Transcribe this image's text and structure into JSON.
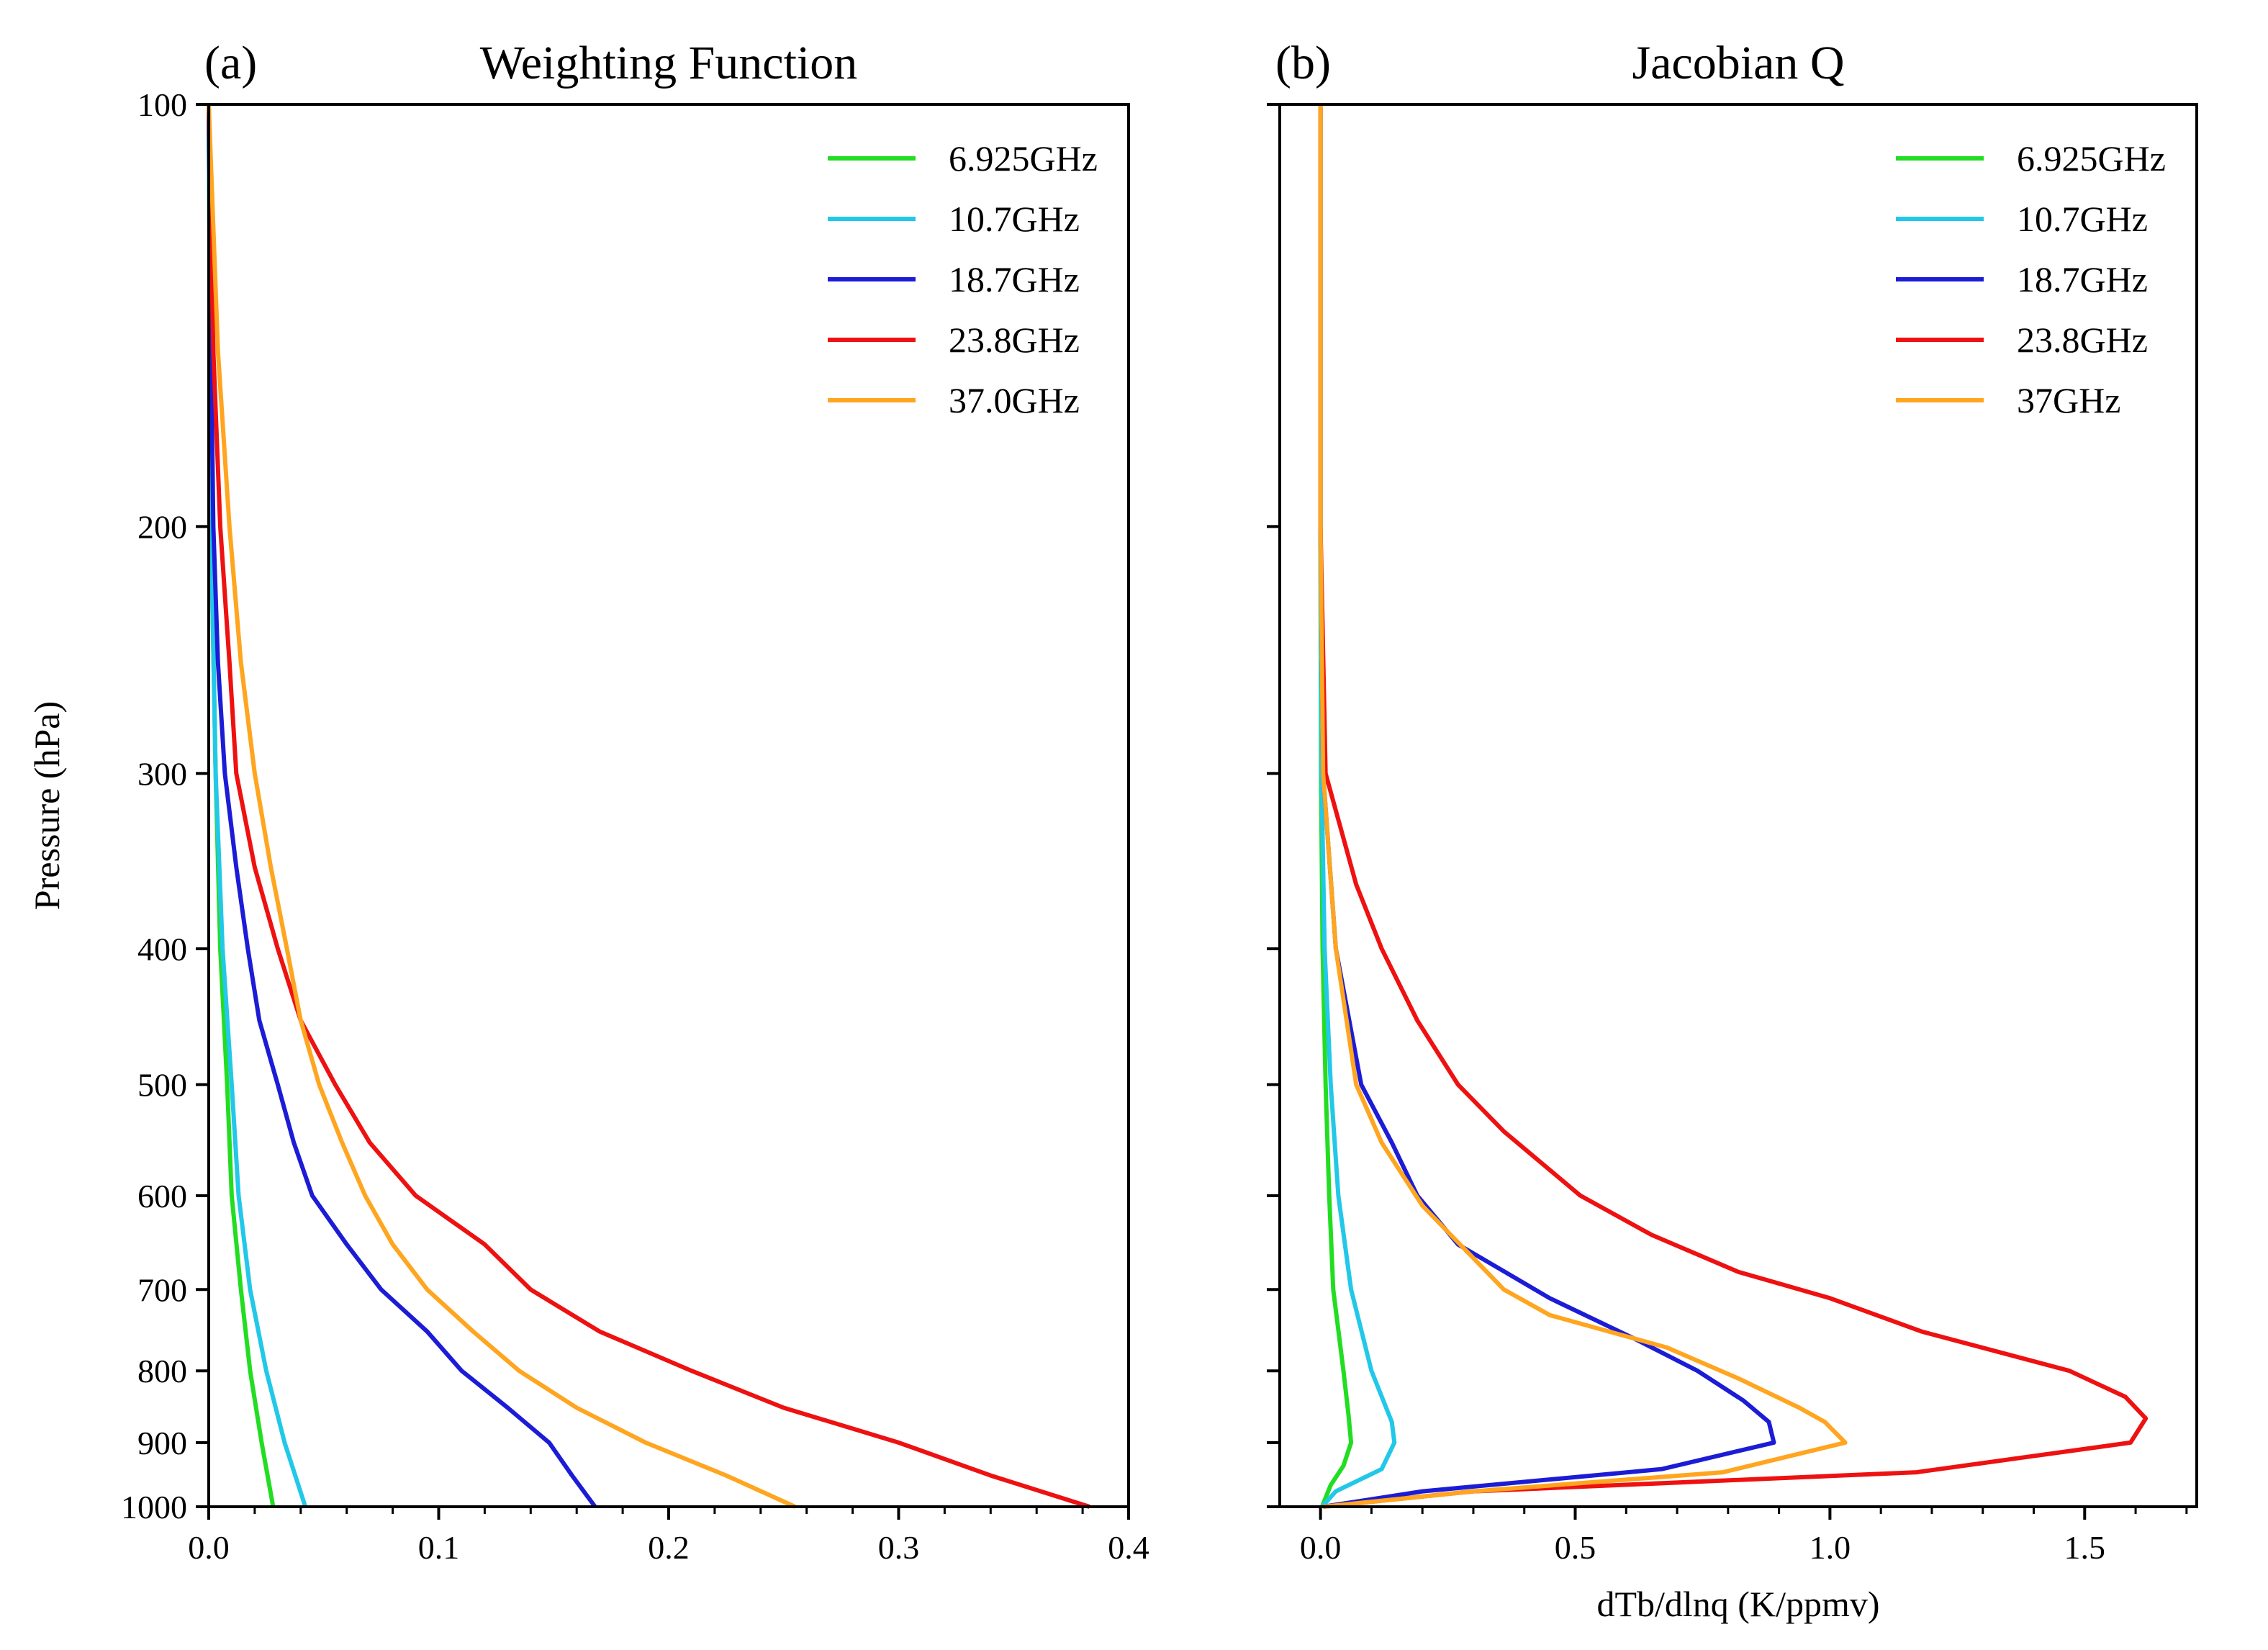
{
  "chart_data": [
    {
      "type": "line",
      "panel_label": "(a)",
      "title": "Weighting Function",
      "xlabel": "",
      "ylabel": "Pressure (hPa)",
      "y_scale": "log",
      "y_inverted": true,
      "xlim": [
        0.0,
        0.4
      ],
      "ylim": [
        100,
        1000
      ],
      "x_ticks": [
        0.0,
        0.1,
        0.2,
        0.3,
        0.4
      ],
      "x_tick_labels": [
        "0.0",
        "0.1",
        "0.2",
        "0.3",
        "0.4"
      ],
      "y_ticks": [
        100,
        200,
        300,
        400,
        500,
        600,
        700,
        800,
        900,
        1000
      ],
      "y_tick_labels": [
        "100",
        "200",
        "300",
        "400",
        "500",
        "600",
        "700",
        "800",
        "900",
        "1000"
      ],
      "grid": false,
      "legend_position": "top-right",
      "series": [
        {
          "name": "6.925GHz",
          "color": "#22dd22",
          "points": [
            [
              0,
              100
            ],
            [
              0.001,
              200
            ],
            [
              0.003,
              300
            ],
            [
              0.005,
              400
            ],
            [
              0.008,
              500
            ],
            [
              0.01,
              600
            ],
            [
              0.014,
              700
            ],
            [
              0.018,
              800
            ],
            [
              0.023,
              900
            ],
            [
              0.028,
              1000
            ]
          ]
        },
        {
          "name": "10.7GHz",
          "color": "#22c8e8",
          "points": [
            [
              0,
              100
            ],
            [
              0.001,
              200
            ],
            [
              0.003,
              300
            ],
            [
              0.006,
              400
            ],
            [
              0.01,
              500
            ],
            [
              0.013,
              600
            ],
            [
              0.018,
              700
            ],
            [
              0.025,
              800
            ],
            [
              0.033,
              900
            ],
            [
              0.042,
              1000
            ]
          ]
        },
        {
          "name": "18.7GHz",
          "color": "#1c1cd6",
          "points": [
            [
              0,
              100
            ],
            [
              0.001,
              150
            ],
            [
              0.002,
              200
            ],
            [
              0.004,
              250
            ],
            [
              0.007,
              300
            ],
            [
              0.012,
              350
            ],
            [
              0.017,
              400
            ],
            [
              0.022,
              450
            ],
            [
              0.03,
              500
            ],
            [
              0.037,
              550
            ],
            [
              0.045,
              600
            ],
            [
              0.06,
              650
            ],
            [
              0.075,
              700
            ],
            [
              0.095,
              750
            ],
            [
              0.11,
              800
            ],
            [
              0.13,
              850
            ],
            [
              0.148,
              900
            ],
            [
              0.158,
              950
            ],
            [
              0.168,
              1000
            ]
          ]
        },
        {
          "name": "23.8GHz",
          "color": "#ee1111",
          "points": [
            [
              0,
              100
            ],
            [
              0.002,
              150
            ],
            [
              0.005,
              200
            ],
            [
              0.009,
              250
            ],
            [
              0.012,
              300
            ],
            [
              0.02,
              350
            ],
            [
              0.03,
              400
            ],
            [
              0.04,
              450
            ],
            [
              0.055,
              500
            ],
            [
              0.07,
              550
            ],
            [
              0.09,
              600
            ],
            [
              0.12,
              650
            ],
            [
              0.14,
              700
            ],
            [
              0.17,
              750
            ],
            [
              0.21,
              800
            ],
            [
              0.25,
              850
            ],
            [
              0.3,
              900
            ],
            [
              0.34,
              950
            ],
            [
              0.383,
              1000
            ]
          ]
        },
        {
          "name": "37.0GHz",
          "color": "#ffa51f",
          "points": [
            [
              0,
              100
            ],
            [
              0.004,
              150
            ],
            [
              0.009,
              200
            ],
            [
              0.014,
              250
            ],
            [
              0.02,
              300
            ],
            [
              0.027,
              350
            ],
            [
              0.034,
              400
            ],
            [
              0.04,
              450
            ],
            [
              0.048,
              500
            ],
            [
              0.058,
              550
            ],
            [
              0.068,
              600
            ],
            [
              0.08,
              650
            ],
            [
              0.095,
              700
            ],
            [
              0.115,
              750
            ],
            [
              0.135,
              800
            ],
            [
              0.16,
              850
            ],
            [
              0.19,
              900
            ],
            [
              0.225,
              950
            ],
            [
              0.255,
              1000
            ]
          ]
        }
      ]
    },
    {
      "type": "line",
      "panel_label": "(b)",
      "title": "Jacobian Q",
      "xlabel": "dTb/dlnq (K/ppmv)",
      "ylabel": "",
      "y_scale": "log",
      "y_inverted": true,
      "xlim": [
        -0.08,
        1.72
      ],
      "ylim": [
        100,
        1000
      ],
      "x_ticks": [
        0.0,
        0.5,
        1.0,
        1.5
      ],
      "x_tick_labels": [
        "0.0",
        "0.5",
        "1.0",
        "1.5"
      ],
      "y_ticks": [
        100,
        200,
        300,
        400,
        500,
        600,
        700,
        800,
        900,
        1000
      ],
      "grid": false,
      "legend_position": "top-right",
      "series": [
        {
          "name": "6.925GHz",
          "color": "#22dd22",
          "points": [
            [
              0,
              100
            ],
            [
              0,
              200
            ],
            [
              0.001,
              300
            ],
            [
              0.004,
              400
            ],
            [
              0.01,
              500
            ],
            [
              0.017,
              600
            ],
            [
              0.025,
              700
            ],
            [
              0.045,
              800
            ],
            [
              0.055,
              860
            ],
            [
              0.06,
              900
            ],
            [
              0.045,
              935
            ],
            [
              0.02,
              965
            ],
            [
              0.003,
              1000
            ]
          ]
        },
        {
          "name": "10.7GHz",
          "color": "#22c8e8",
          "points": [
            [
              0,
              100
            ],
            [
              0,
              200
            ],
            [
              0.002,
              300
            ],
            [
              0.008,
              400
            ],
            [
              0.02,
              500
            ],
            [
              0.035,
              600
            ],
            [
              0.06,
              700
            ],
            [
              0.1,
              800
            ],
            [
              0.14,
              870
            ],
            [
              0.145,
              900
            ],
            [
              0.12,
              940
            ],
            [
              0.03,
              975
            ],
            [
              0.003,
              1000
            ]
          ]
        },
        {
          "name": "18.7GHz",
          "color": "#1c1cd6",
          "points": [
            [
              0,
              100
            ],
            [
              0,
              200
            ],
            [
              0.005,
              300
            ],
            [
              0.03,
              400
            ],
            [
              0.08,
              500
            ],
            [
              0.14,
              550
            ],
            [
              0.19,
              600
            ],
            [
              0.27,
              650
            ],
            [
              0.45,
              710
            ],
            [
              0.62,
              760
            ],
            [
              0.74,
              800
            ],
            [
              0.83,
              840
            ],
            [
              0.88,
              870
            ],
            [
              0.89,
              900
            ],
            [
              0.67,
              940
            ],
            [
              0.2,
              975
            ],
            [
              0.005,
              1000
            ]
          ]
        },
        {
          "name": "23.8GHz",
          "color": "#ee1111",
          "points": [
            [
              0,
              100
            ],
            [
              0,
              200
            ],
            [
              0.01,
              300
            ],
            [
              0.07,
              360
            ],
            [
              0.12,
              400
            ],
            [
              0.19,
              450
            ],
            [
              0.27,
              500
            ],
            [
              0.36,
              540
            ],
            [
              0.51,
              600
            ],
            [
              0.65,
              640
            ],
            [
              0.82,
              680
            ],
            [
              1.0,
              710
            ],
            [
              1.18,
              750
            ],
            [
              1.47,
              800
            ],
            [
              1.58,
              835
            ],
            [
              1.62,
              865
            ],
            [
              1.59,
              900
            ],
            [
              1.17,
              945
            ],
            [
              0.3,
              975
            ],
            [
              0.005,
              1000
            ]
          ]
        },
        {
          "name": "37GHz",
          "color": "#ffa51f",
          "points": [
            [
              0,
              100
            ],
            [
              0,
              200
            ],
            [
              0.005,
              300
            ],
            [
              0.03,
              400
            ],
            [
              0.07,
              500
            ],
            [
              0.12,
              550
            ],
            [
              0.2,
              610
            ],
            [
              0.36,
              700
            ],
            [
              0.45,
              730
            ],
            [
              0.68,
              770
            ],
            [
              0.82,
              810
            ],
            [
              0.94,
              850
            ],
            [
              0.99,
              870
            ],
            [
              1.03,
              900
            ],
            [
              0.79,
              945
            ],
            [
              0.3,
              975
            ],
            [
              0.005,
              1000
            ]
          ]
        }
      ]
    }
  ]
}
